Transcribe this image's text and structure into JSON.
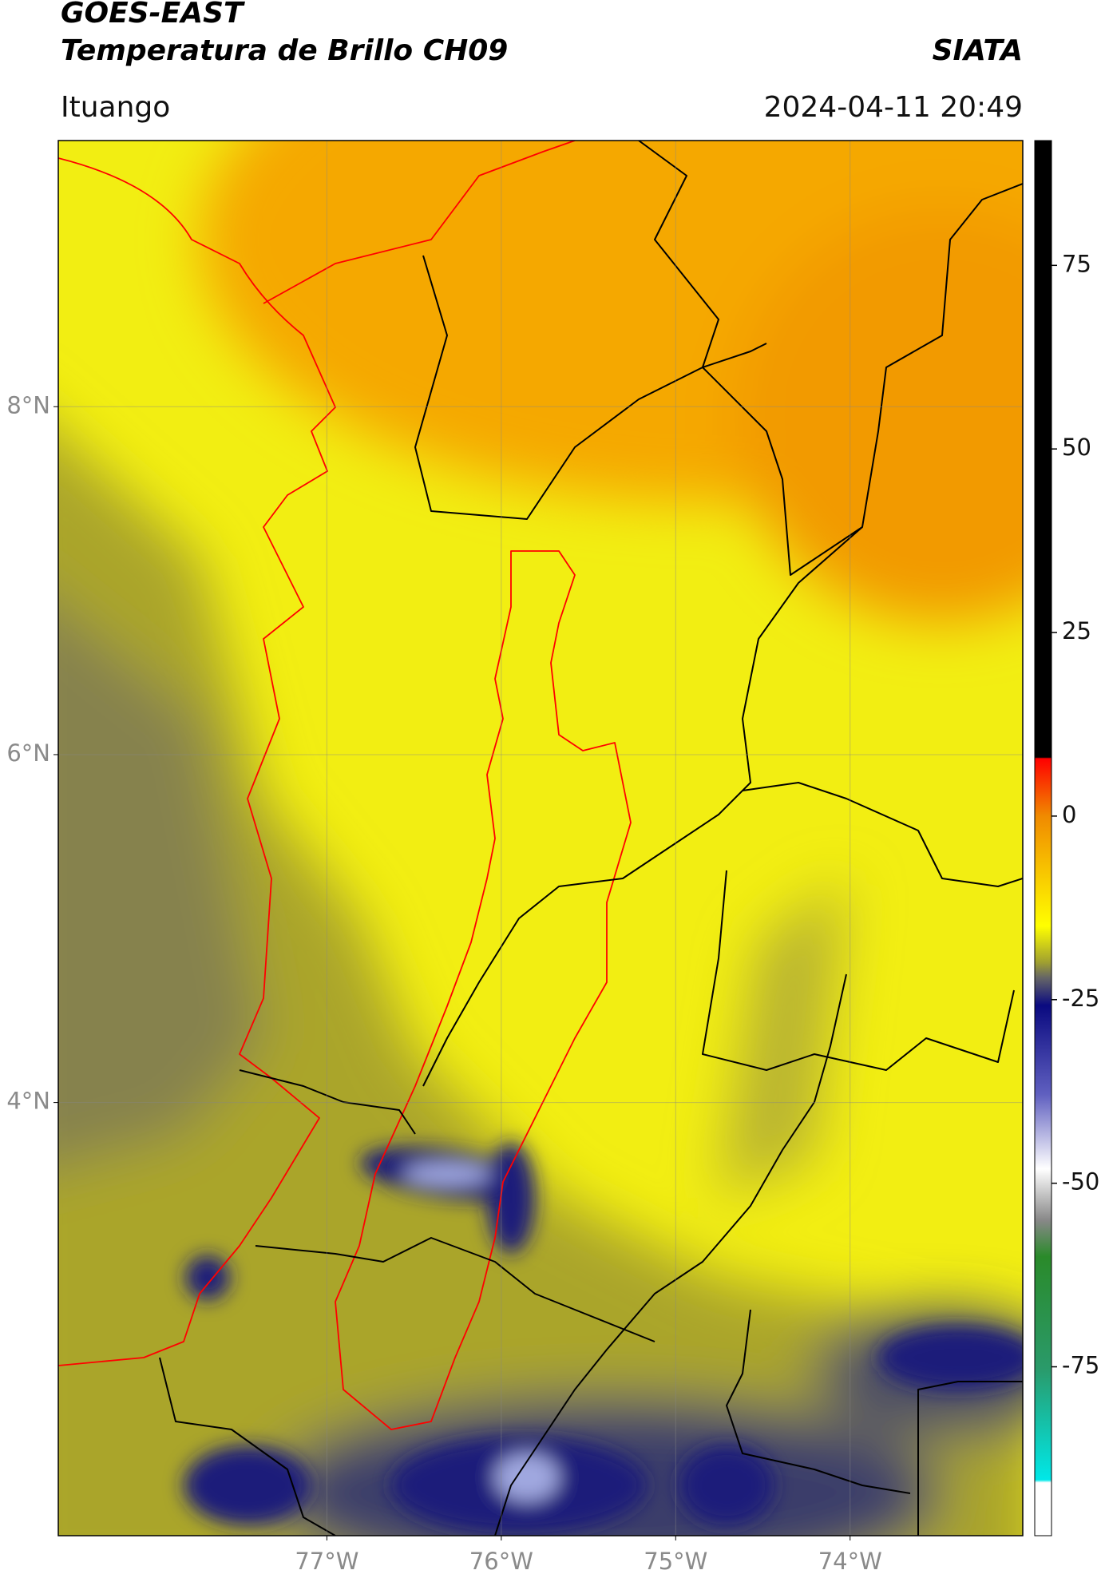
{
  "header": {
    "title": "GOES-EAST",
    "subtitle": "Temperatura de Brillo CH09",
    "source": "SIATA",
    "location": "Ituango",
    "datetime": "2024-04-11 20:49"
  },
  "map": {
    "lonlim": [
      -78.54,
      -73.01
    ],
    "latlim": [
      1.51,
      9.53
    ],
    "lonticks": [
      {
        "value": -77,
        "label": "77°W"
      },
      {
        "value": -76,
        "label": "76°W"
      },
      {
        "value": -75,
        "label": "75°W"
      },
      {
        "value": -74,
        "label": "74°W"
      }
    ],
    "latticks": [
      {
        "value": 8,
        "label": "8°N"
      },
      {
        "value": 6,
        "label": "6°N"
      },
      {
        "value": 4,
        "label": "4°N"
      }
    ],
    "grid": true
  },
  "colorbar": {
    "lim": [
      -98,
      92
    ],
    "ticks": [
      75,
      50,
      25,
      0,
      -25,
      -50,
      -75
    ]
  }
}
